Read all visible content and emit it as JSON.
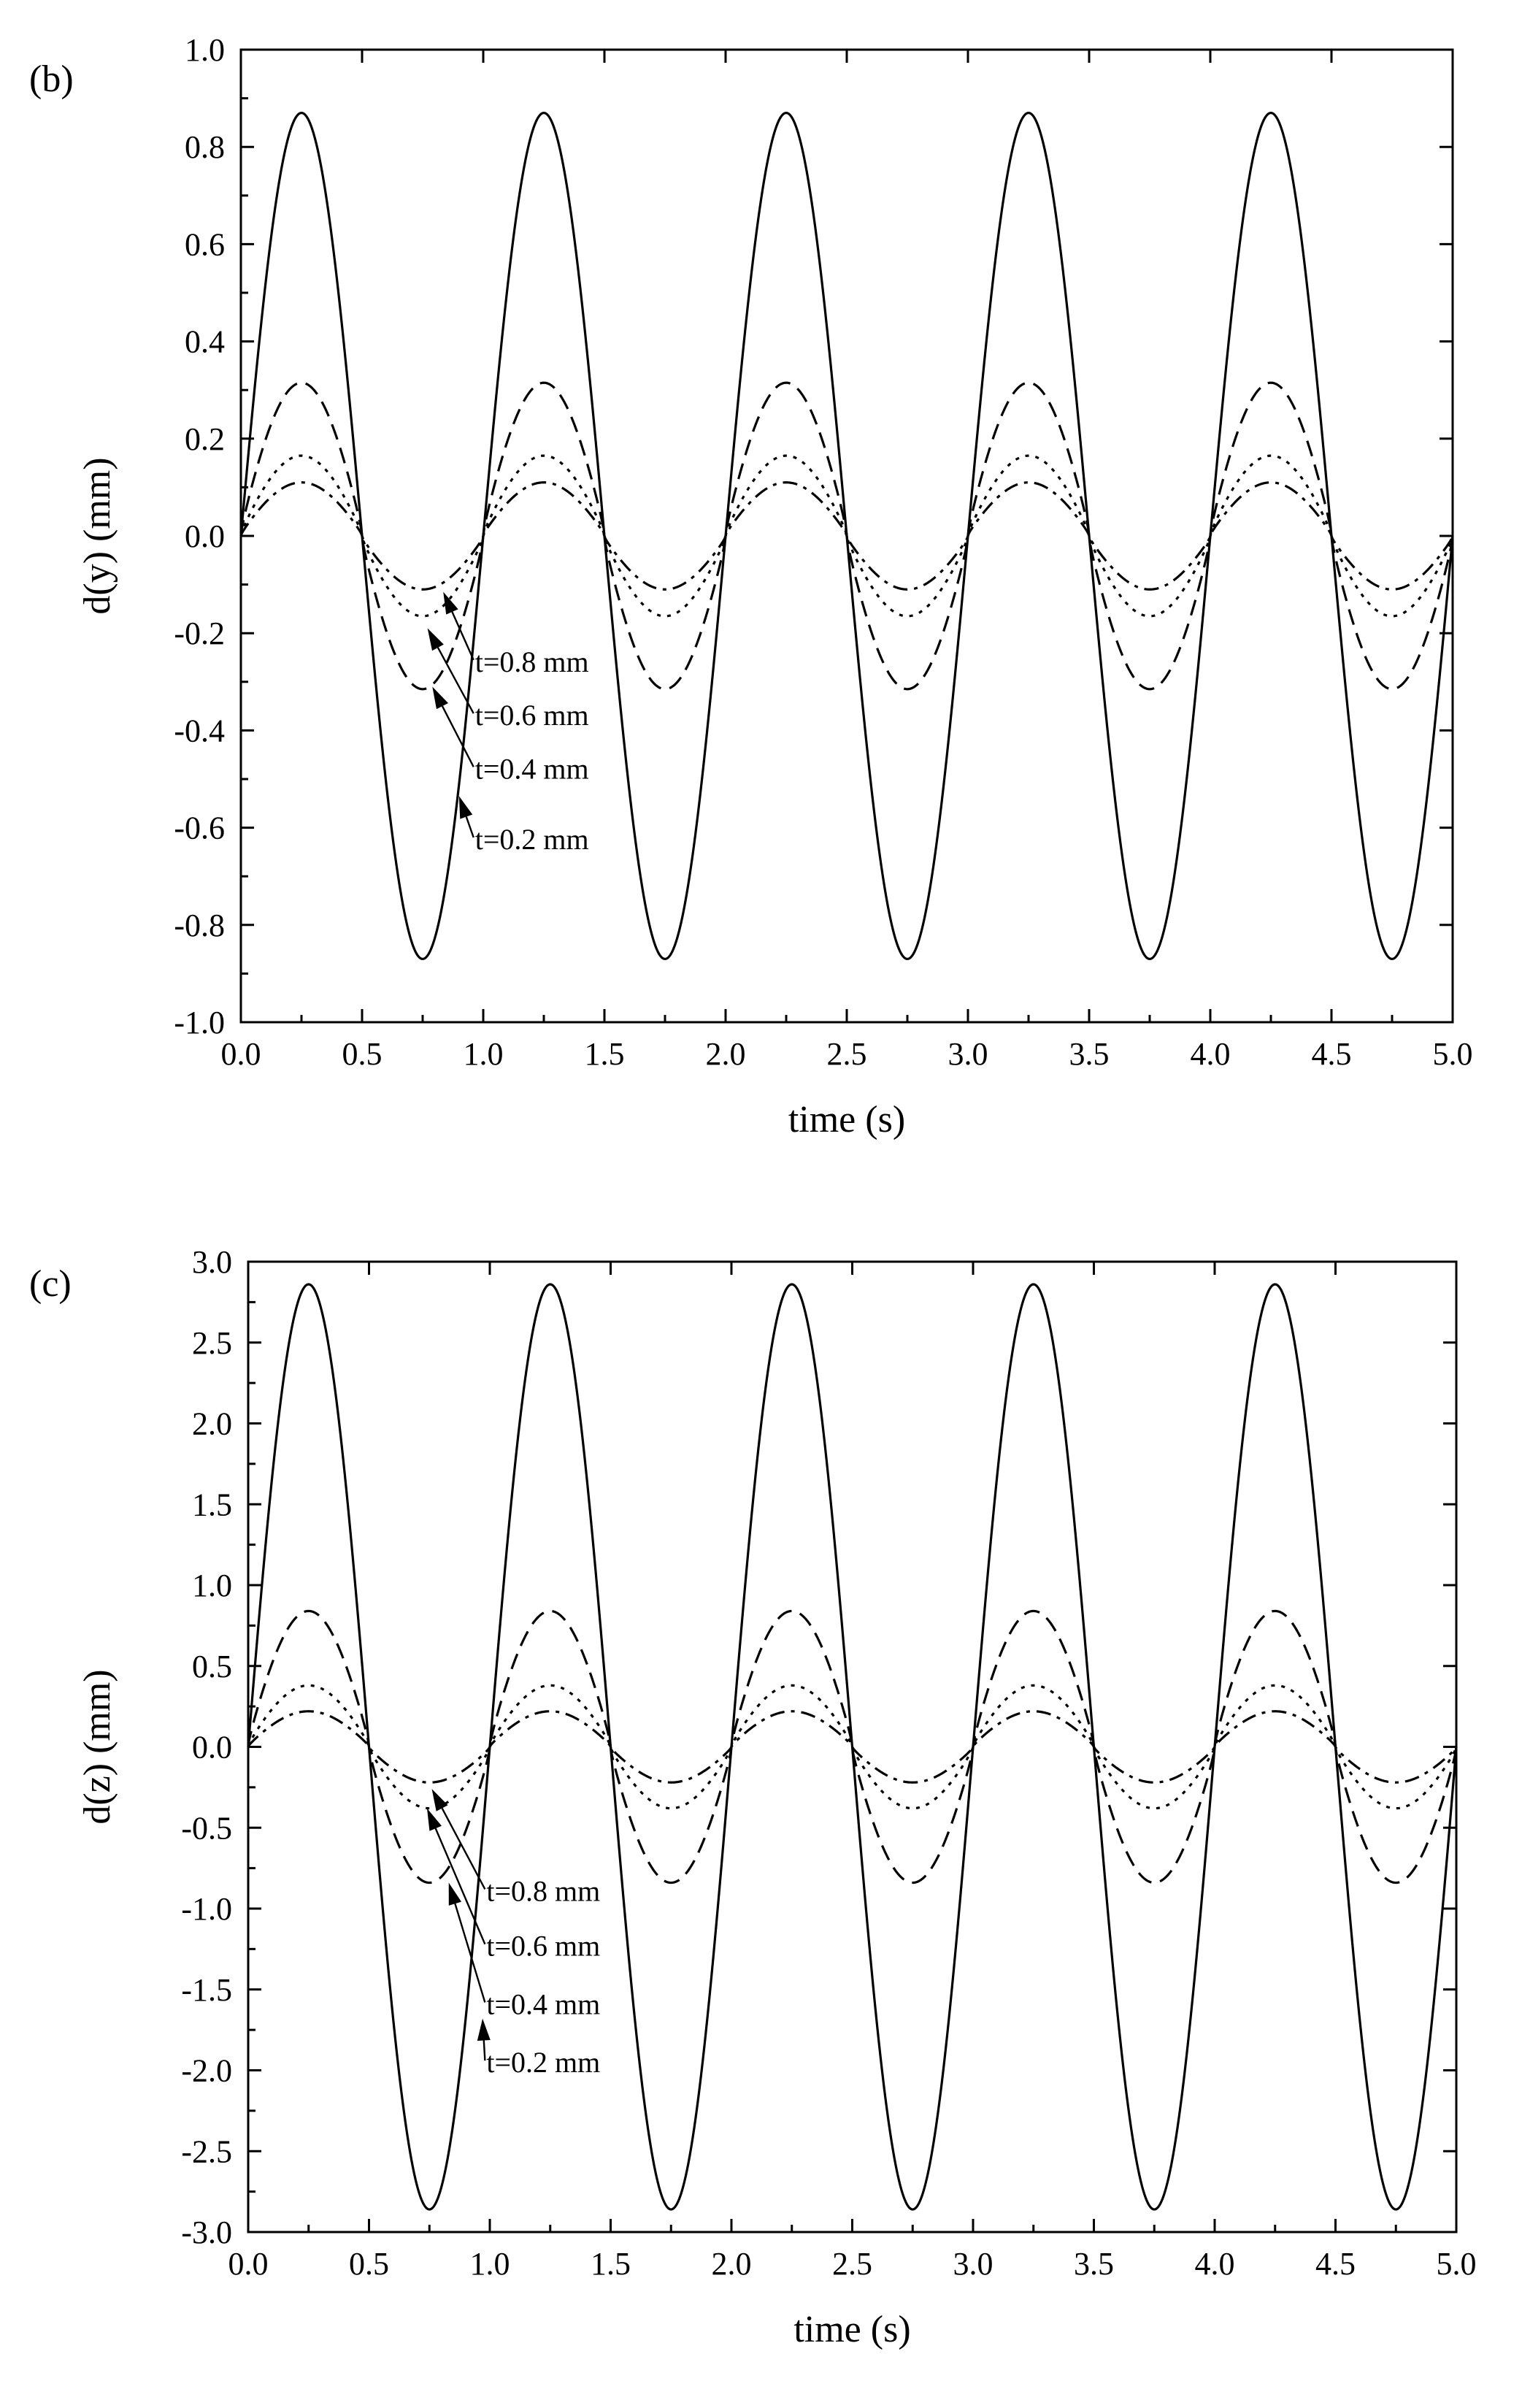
{
  "charts": [
    {
      "type": "line",
      "panel_label": "(b)",
      "xlabel": "time (s)",
      "ylabel": "d(y) (mm)",
      "xlim": [
        0.0,
        5.0
      ],
      "ylim": [
        -1.0,
        1.0
      ],
      "x_ticks": [
        "0.0",
        "0.5",
        "1.0",
        "1.5",
        "2.0",
        "2.5",
        "3.0",
        "3.5",
        "4.0",
        "4.5",
        "5.0"
      ],
      "y_ticks": [
        "1.0",
        "0.8",
        "0.6",
        "0.4",
        "0.2",
        "0.0",
        "-0.2",
        "-0.4",
        "-0.6",
        "-0.8",
        "-1.0"
      ],
      "period": 1.0,
      "series": [
        {
          "name": "t=0.2 mm",
          "style": "solid",
          "amplitude": 0.87
        },
        {
          "name": "t=0.4 mm",
          "style": "dashed",
          "amplitude": 0.315
        },
        {
          "name": "t=0.6 mm",
          "style": "dotted",
          "amplitude": 0.165
        },
        {
          "name": "t=0.8 mm",
          "style": "dashdot",
          "amplitude": 0.11
        }
      ],
      "annotations": [
        {
          "text": "t=0.8 mm",
          "label_x": 0.96,
          "label_y": -0.255,
          "tip_x": 0.835,
          "tip_y": -0.115
        },
        {
          "text": "t=0.6 mm",
          "label_x": 0.96,
          "label_y": -0.365,
          "tip_x": 0.77,
          "tip_y": -0.19
        },
        {
          "text": "t=0.4 mm",
          "label_x": 0.96,
          "label_y": -0.475,
          "tip_x": 0.79,
          "tip_y": -0.31
        },
        {
          "text": "t=0.2 mm",
          "label_x": 0.96,
          "label_y": -0.62,
          "tip_x": 0.9,
          "tip_y": -0.535
        }
      ]
    },
    {
      "type": "line",
      "panel_label": "(c)",
      "xlabel": "time (s)",
      "ylabel": "d(z) (mm)",
      "xlim": [
        0.0,
        5.0
      ],
      "ylim": [
        -3.0,
        3.0
      ],
      "x_ticks": [
        "0.0",
        "0.5",
        "1.0",
        "1.5",
        "2.0",
        "2.5",
        "3.0",
        "3.5",
        "4.0",
        "4.5",
        "5.0"
      ],
      "y_ticks": [
        "3.0",
        "2.5",
        "2.0",
        "1.5",
        "1.0",
        "0.5",
        "0.0",
        "-0.5",
        "-1.0",
        "-1.5",
        "-2.0",
        "-2.5",
        "-3.0"
      ],
      "period": 1.0,
      "series": [
        {
          "name": "t=0.2 mm",
          "style": "solid",
          "amplitude": 2.86
        },
        {
          "name": "t=0.4 mm",
          "style": "dashed",
          "amplitude": 0.84
        },
        {
          "name": "t=0.6 mm",
          "style": "dotted",
          "amplitude": 0.38
        },
        {
          "name": "t=0.8 mm",
          "style": "dashdot",
          "amplitude": 0.22
        }
      ],
      "annotations": [
        {
          "text": "t=0.8 mm",
          "label_x": 0.98,
          "label_y": -0.88,
          "tip_x": 0.76,
          "tip_y": -0.26
        },
        {
          "text": "t=0.6 mm",
          "label_x": 0.98,
          "label_y": -1.22,
          "tip_x": 0.74,
          "tip_y": -0.38
        },
        {
          "text": "t=0.4 mm",
          "label_x": 0.98,
          "label_y": -1.58,
          "tip_x": 0.83,
          "tip_y": -0.84
        },
        {
          "text": "t=0.2 mm",
          "label_x": 0.98,
          "label_y": -1.94,
          "tip_x": 0.97,
          "tip_y": -1.68
        }
      ]
    }
  ]
}
